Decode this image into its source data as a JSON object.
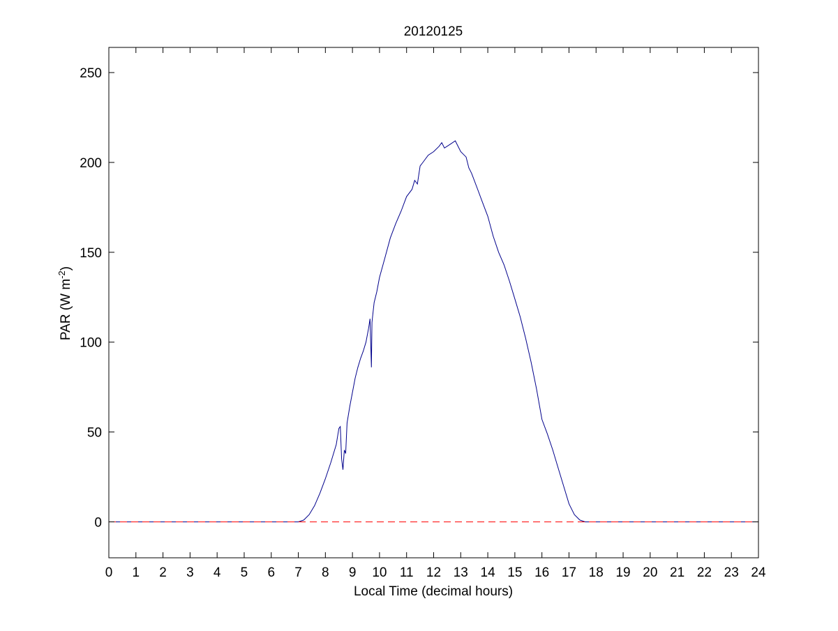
{
  "chart_data": {
    "type": "line",
    "title": "20120125",
    "xlabel": "Local Time (decimal hours)",
    "ylabel": {
      "main": "PAR (W m",
      "superscript": "-2",
      "close": ")"
    },
    "xlim": [
      0,
      24
    ],
    "ylim": [
      -20,
      264
    ],
    "xticks": [
      0,
      1,
      2,
      3,
      4,
      5,
      6,
      7,
      8,
      9,
      10,
      11,
      12,
      13,
      14,
      15,
      16,
      17,
      18,
      19,
      20,
      21,
      22,
      23,
      24
    ],
    "yticks": [
      0,
      50,
      100,
      150,
      200,
      250
    ],
    "grid": false,
    "legend": "none",
    "series": [
      {
        "color": "#00008B",
        "style": "solid",
        "x": [
          0,
          7.0,
          7.2,
          7.4,
          7.6,
          7.8,
          8.0,
          8.2,
          8.4,
          8.5,
          8.55,
          8.6,
          8.65,
          8.7,
          8.75,
          8.8,
          8.9,
          9.0,
          9.1,
          9.2,
          9.3,
          9.4,
          9.5,
          9.6,
          9.65,
          9.7,
          9.72,
          9.75,
          9.8,
          9.9,
          10.0,
          10.2,
          10.4,
          10.6,
          10.8,
          11.0,
          11.2,
          11.3,
          11.4,
          11.5,
          11.6,
          11.8,
          12.0,
          12.2,
          12.3,
          12.4,
          12.6,
          12.8,
          13.0,
          13.2,
          13.3,
          13.4,
          13.6,
          13.8,
          14.0,
          14.2,
          14.4,
          14.6,
          14.8,
          15.0,
          15.2,
          15.4,
          15.6,
          15.8,
          16.0,
          16.2,
          16.4,
          16.6,
          16.8,
          17.0,
          17.2,
          17.4,
          17.6,
          17.8,
          24.0
        ],
        "y": [
          0,
          0,
          1,
          4,
          9,
          16,
          24,
          33,
          43,
          52,
          53,
          35,
          29,
          40,
          38,
          55,
          64,
          72,
          80,
          86,
          91,
          95,
          100,
          108,
          113,
          86,
          111,
          115,
          122,
          128,
          136,
          147,
          158,
          166,
          173,
          181,
          185,
          190,
          188,
          198,
          200,
          204,
          206,
          209,
          211,
          208,
          210,
          212,
          206,
          203,
          197,
          194,
          186,
          178,
          170,
          159,
          150,
          143,
          134,
          124,
          114,
          102,
          89,
          74,
          57,
          49,
          40,
          30,
          20,
          10,
          4,
          1,
          0,
          0,
          0
        ]
      },
      {
        "color": "#FF0000",
        "style": "dashed",
        "x": [
          0,
          24
        ],
        "y": [
          0,
          0
        ]
      }
    ]
  }
}
